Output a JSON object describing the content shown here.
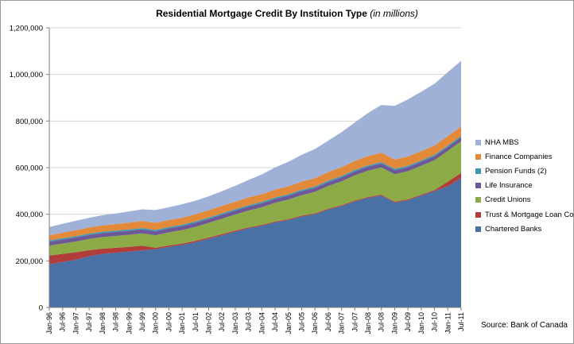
{
  "chart_data": {
    "type": "area",
    "stacked": true,
    "title": "Residential Mortgage Credit By Instituion Type",
    "subtitle": "(in millions)",
    "ylim": [
      0,
      1200000
    ],
    "yticks": [
      0,
      200000,
      400000,
      600000,
      800000,
      1000000,
      1200000
    ],
    "ytick_labels": [
      "0",
      "200,000",
      "400,000",
      "600,000",
      "800,000",
      "1,000,000",
      "1,200,000"
    ],
    "x": [
      "Jan-96",
      "Jul-96",
      "Jan-97",
      "Jul-97",
      "Jan-98",
      "Jul-98",
      "Jan-99",
      "Jul-99",
      "Jan-00",
      "Jul-00",
      "Jan-01",
      "Jul-01",
      "Jan-02",
      "Jul-02",
      "Jan-03",
      "Jul-03",
      "Jan-04",
      "Jul-04",
      "Jan-05",
      "Jul-05",
      "Jan-06",
      "Jul-06",
      "Jan-07",
      "Jul-07",
      "Jan-08",
      "Jul-08",
      "Jan-09",
      "Jul-09",
      "Jan-10",
      "Jul-10",
      "Jan-11",
      "Jul-11"
    ],
    "xtick_labels": [
      "Jan-96",
      "Jul-96",
      "Jan-97",
      "Jul-97",
      "Jan-98",
      "Jul-98",
      "Jan-99",
      "Jul-99",
      "Jan-00",
      "Jul-00",
      "Jan-01",
      "Jul-01",
      "Jan-02",
      "Jul-02",
      "Jan-03",
      "Jul-03",
      "Jan-04",
      "Jul-04",
      "Jan-05",
      "Jul-05",
      "Jan-06",
      "Jul-06",
      "Jan-07",
      "Jul-07",
      "Jan-08",
      "Jul-08",
      "Jan-09",
      "Jul-09",
      "Jan-10",
      "Jul-10",
      "Jan-11",
      "Jul-11"
    ],
    "grid": true,
    "legend_position": "right",
    "series": [
      {
        "name": "Chartered Banks",
        "color": "#4a71a6",
        "values": [
          185000,
          195000,
          205000,
          220000,
          230000,
          235000,
          240000,
          245000,
          250000,
          260000,
          268000,
          280000,
          295000,
          310000,
          325000,
          340000,
          350000,
          365000,
          375000,
          390000,
          400000,
          420000,
          435000,
          455000,
          470000,
          480000,
          450000,
          460000,
          480000,
          500000,
          520000,
          555000
        ]
      },
      {
        "name": "Trust & Mortgage Loan Co.",
        "color": "#b13d3a",
        "values": [
          38000,
          35000,
          32000,
          26000,
          22000,
          21000,
          20000,
          20000,
          6000,
          6000,
          6000,
          6000,
          5000,
          5000,
          5000,
          4000,
          4000,
          4000,
          4000,
          4000,
          4000,
          4000,
          4000,
          4000,
          4000,
          4000,
          4000,
          4000,
          4000,
          4000,
          20000,
          22000
        ]
      },
      {
        "name": "Credit Unions",
        "color": "#8cab47",
        "values": [
          42000,
          44000,
          46000,
          48000,
          50000,
          51000,
          52000,
          53000,
          54000,
          56000,
          58000,
          60000,
          63000,
          66000,
          69000,
          72000,
          76000,
          80000,
          84000,
          88000,
          92000,
          97000,
          102000,
          108000,
          113000,
          117000,
          118000,
          121000,
          124000,
          128000,
          132000,
          136000
        ]
      },
      {
        "name": "Life Insurance",
        "color": "#6e5797",
        "values": [
          17000,
          17000,
          17000,
          17000,
          17000,
          17000,
          17000,
          17000,
          17000,
          17000,
          17000,
          17000,
          17000,
          17000,
          17000,
          17000,
          17000,
          17000,
          17000,
          17000,
          17000,
          17000,
          17000,
          17000,
          17000,
          17000,
          17000,
          17000,
          17000,
          17000,
          17000,
          17000
        ]
      },
      {
        "name": "Pension Funds (2)",
        "color": "#3e98b3",
        "values": [
          6000,
          6000,
          6000,
          6000,
          6000,
          6000,
          6000,
          6000,
          6000,
          6000,
          6000,
          6000,
          6000,
          6000,
          6000,
          6000,
          6000,
          6000,
          6000,
          6000,
          6000,
          6000,
          6000,
          6000,
          6000,
          6000,
          6000,
          6000,
          6000,
          6000,
          6000,
          6000
        ]
      },
      {
        "name": "Finance Companies",
        "color": "#e3893a",
        "values": [
          22000,
          24000,
          25000,
          26000,
          27000,
          28000,
          29000,
          30000,
          30000,
          30000,
          30000,
          31000,
          31000,
          32000,
          32000,
          33000,
          33000,
          34000,
          34000,
          35000,
          36000,
          37000,
          38000,
          39000,
          40000,
          40000,
          40000,
          40000,
          40000,
          40000,
          40000,
          40000
        ]
      },
      {
        "name": "NHA MBS",
        "color": "#9fb1d6",
        "values": [
          35000,
          38000,
          41000,
          42000,
          44000,
          45000,
          48000,
          50000,
          55000,
          55000,
          58000,
          58000,
          60000,
          63000,
          68000,
          75000,
          85000,
          95000,
          105000,
          115000,
          125000,
          135000,
          150000,
          165000,
          185000,
          205000,
          230000,
          245000,
          255000,
          265000,
          275000,
          282000
        ]
      }
    ],
    "source": "Source: Bank of Canada"
  }
}
